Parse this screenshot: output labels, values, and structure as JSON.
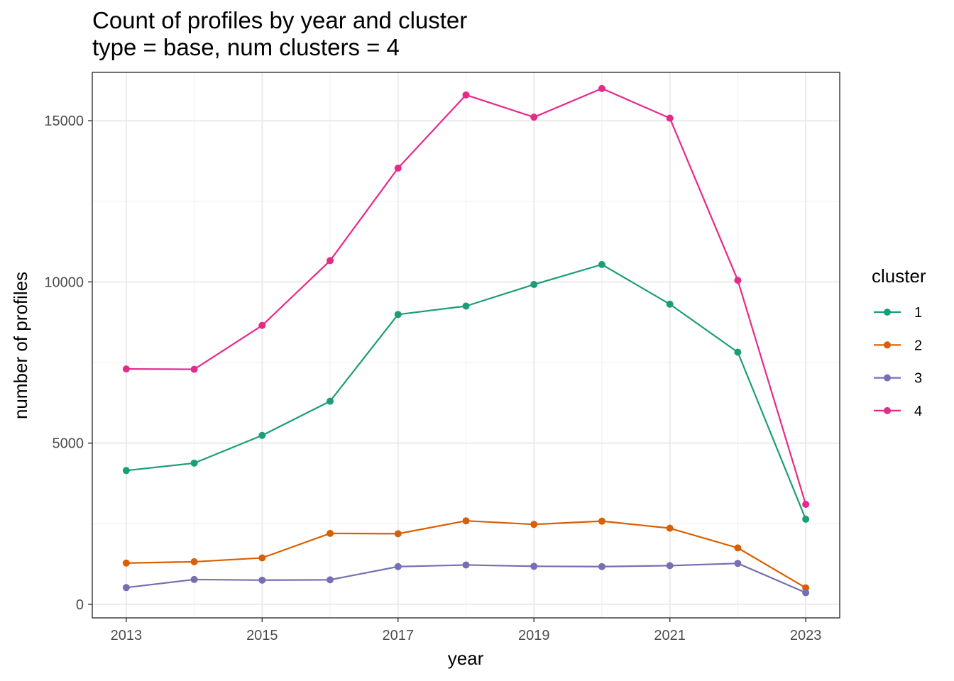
{
  "chart_data": {
    "type": "line",
    "title": "Count of profiles by year and cluster",
    "subtitle": "type = base, num clusters = 4",
    "xlabel": "year",
    "ylabel": "number of profiles",
    "x": [
      2013,
      2014,
      2015,
      2016,
      2017,
      2018,
      2019,
      2020,
      2021,
      2022,
      2023
    ],
    "x_ticks": [
      "2013",
      "2015",
      "2017",
      "2019",
      "2021",
      "2023"
    ],
    "y_ticks": [
      "0",
      "5000",
      "10000",
      "15000"
    ],
    "xlim": [
      2012.5,
      2023.5
    ],
    "ylim": [
      -420,
      16500
    ],
    "grid": true,
    "legend": {
      "title": "cluster",
      "placement": "right"
    },
    "series": [
      {
        "name": "1",
        "color": "#1b9e77",
        "values": [
          4150,
          4380,
          5240,
          6300,
          8990,
          9250,
          9920,
          10540,
          9310,
          7820,
          2640
        ]
      },
      {
        "name": "2",
        "color": "#d95f02",
        "values": [
          1280,
          1320,
          1440,
          2200,
          2190,
          2590,
          2480,
          2580,
          2360,
          1750,
          510
        ]
      },
      {
        "name": "3",
        "color": "#7570b3",
        "values": [
          520,
          770,
          750,
          760,
          1170,
          1220,
          1180,
          1170,
          1200,
          1270,
          360
        ]
      },
      {
        "name": "4",
        "color": "#e7298a",
        "values": [
          7300,
          7290,
          8650,
          10660,
          13530,
          15800,
          15110,
          16000,
          15080,
          10050,
          3100
        ]
      }
    ]
  }
}
